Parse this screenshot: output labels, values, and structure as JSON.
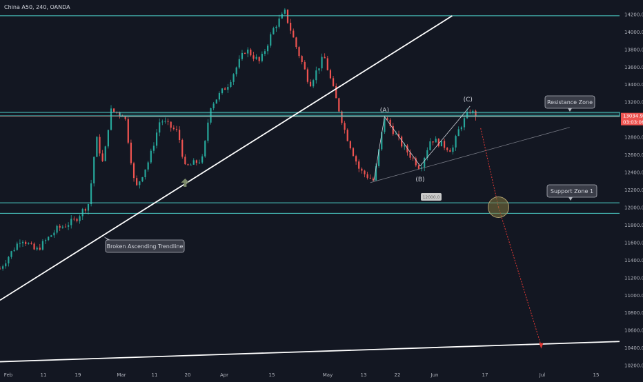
{
  "header": {
    "symbol_label": "China A50, 240, OANDA"
  },
  "theme": {
    "background": "#131722",
    "up_color": "#26a69a",
    "down_color": "#ef5350",
    "zone_color": "#4dd0c9",
    "trendline_color": "#ffffff",
    "arrow_color": "#e53935",
    "axis_text_color": "#b2b5be"
  },
  "price_axis": {
    "ticks": [
      "14200.0",
      "14000.0",
      "13800.0",
      "13600.0",
      "13400.0",
      "13200.0",
      "13000.0",
      "12800.0",
      "12600.0",
      "12400.0",
      "12200.0",
      "12000.0",
      "11800.0",
      "11600.0",
      "11400.0",
      "11200.0",
      "11000.0",
      "10800.0",
      "10600.0",
      "10400.0",
      "10200.0"
    ],
    "last_price_label": "13034.9",
    "countdown_label": "03:03:06"
  },
  "time_axis": {
    "ticks": [
      "Feb",
      "11",
      "19",
      "Mar",
      "11",
      "20",
      "Apr",
      "15",
      "May",
      "13",
      "22",
      "Jun",
      "17",
      "Jul",
      "15",
      "Jul"
    ]
  },
  "chart_data": {
    "type": "candlestick",
    "title": "China A50, 240, OANDA",
    "ylim": [
      10150,
      14360
    ],
    "xlim": [
      "Jan 29",
      "Jul 22"
    ],
    "x_ticks": [
      "Feb",
      "11",
      "19",
      "Mar",
      "11",
      "20",
      "Apr",
      "15",
      "May",
      "13",
      "22",
      "Jun",
      "17",
      "Jul",
      "15",
      "Jul"
    ],
    "y_ticks": [
      14200,
      14000,
      13800,
      13600,
      13400,
      13200,
      13000,
      12800,
      12600,
      12400,
      12200,
      12000,
      11800,
      11600,
      11400,
      11200,
      11000,
      10800,
      10600,
      10400,
      10200
    ],
    "last_price": 13034.9,
    "price_path": [
      {
        "x": "Jan 29",
        "y": 11300
      },
      {
        "x": "Feb 4",
        "y": 11650
      },
      {
        "x": "Feb 8",
        "y": 11500
      },
      {
        "x": "Feb 14",
        "y": 11750
      },
      {
        "x": "Feb 19",
        "y": 11850
      },
      {
        "x": "Feb 23",
        "y": 12050
      },
      {
        "x": "Feb 25",
        "y": 12800
      },
      {
        "x": "Feb 27",
        "y": 12480
      },
      {
        "x": "Mar 1",
        "y": 13100
      },
      {
        "x": "Mar 5",
        "y": 13050
      },
      {
        "x": "Mar 8",
        "y": 12200
      },
      {
        "x": "Mar 12",
        "y": 12550
      },
      {
        "x": "Mar 15",
        "y": 13000
      },
      {
        "x": "Mar 20",
        "y": 12850
      },
      {
        "x": "Mar 22",
        "y": 12450
      },
      {
        "x": "Mar 27",
        "y": 12550
      },
      {
        "x": "Mar 29",
        "y": 13150
      },
      {
        "x": "Apr 3",
        "y": 13400
      },
      {
        "x": "Apr 8",
        "y": 13800
      },
      {
        "x": "Apr 12",
        "y": 13650
      },
      {
        "x": "Apr 16",
        "y": 14050
      },
      {
        "x": "Apr 19",
        "y": 14220
      },
      {
        "x": "Apr 22",
        "y": 13850
      },
      {
        "x": "Apr 26",
        "y": 13400
      },
      {
        "x": "Apr 30",
        "y": 13720
      },
      {
        "x": "May 6",
        "y": 12850
      },
      {
        "x": "May 10",
        "y": 12420
      },
      {
        "x": "May 14",
        "y": 12300
      },
      {
        "x": "May 17",
        "y": 13030
      },
      {
        "x": "May 22",
        "y": 12700
      },
      {
        "x": "May 27",
        "y": 12450
      },
      {
        "x": "May 30",
        "y": 12780
      },
      {
        "x": "Jun 5",
        "y": 12650
      },
      {
        "x": "Jun 7",
        "y": 12900
      },
      {
        "x": "Jun 10",
        "y": 13100
      },
      {
        "x": "Jun 12",
        "y": 13034.9
      }
    ],
    "horizontal_levels": [
      {
        "name": "Resistance Zone",
        "from": 13040,
        "to": 13080
      },
      {
        "name": "Support Zone 1",
        "from": 11930,
        "to": 12050
      },
      {
        "name": "top line",
        "value": 14180
      },
      {
        "name": "last price line",
        "value": 13034.9
      }
    ],
    "trendlines": [
      {
        "name": "Broken Ascending Trendline",
        "from": {
          "x": "Jan 29",
          "y": 10940
        },
        "to": {
          "x": "Jun 5",
          "y": 14180
        }
      },
      {
        "name": "lower trendline",
        "from": {
          "x": "Jan 29",
          "y": 10240
        },
        "to": {
          "x": "Jul 22",
          "y": 10470
        }
      }
    ],
    "annotations": [
      {
        "label": "(A)",
        "x": "May 17",
        "y": 13030
      },
      {
        "label": "(B)",
        "x": "May 27",
        "y": 12450
      },
      {
        "label": "(C)",
        "x": "Jun 10",
        "y": 13150
      },
      {
        "label": "Resistance Zone"
      },
      {
        "label": "Support Zone 1"
      },
      {
        "label": "Broken Ascending Trendline"
      },
      {
        "label": "12000.0"
      }
    ]
  },
  "labels": {
    "resistance_callout": "Resistance Zone",
    "support_callout": "Support Zone 1",
    "trendline_callout": "Broken Ascending Trendline",
    "level_tag": "12000.0",
    "wave_a": "(A)",
    "wave_b": "(B)",
    "wave_c": "(C)"
  }
}
